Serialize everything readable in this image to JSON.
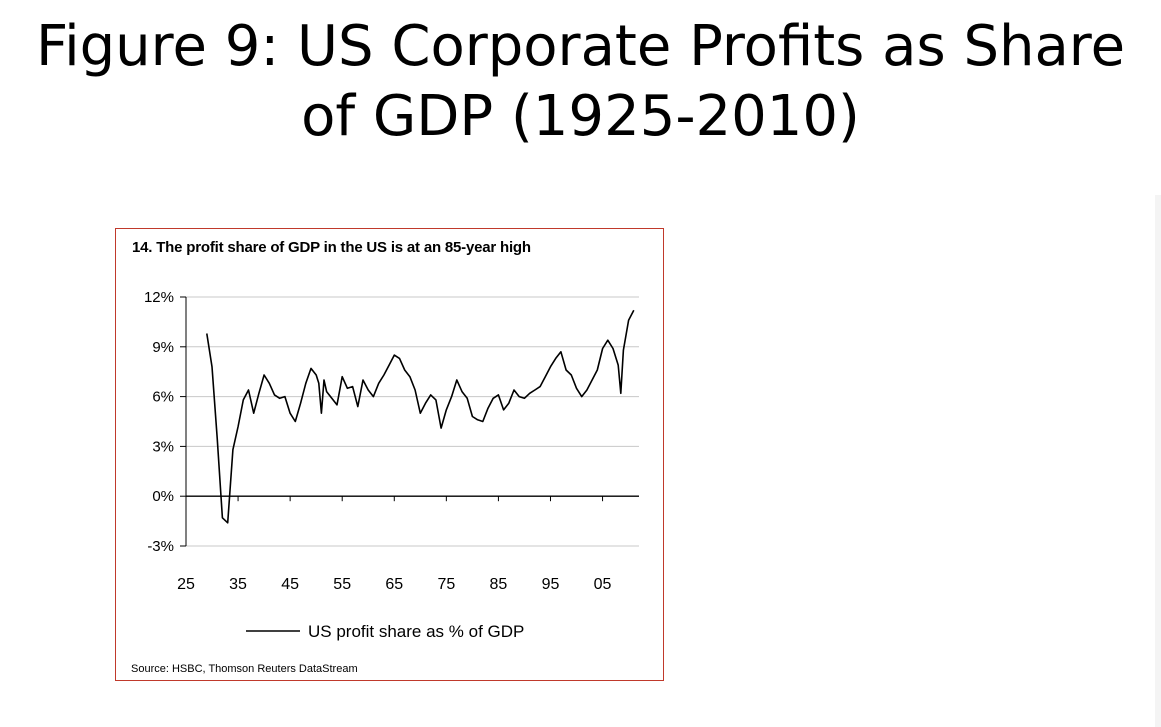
{
  "slide": {
    "title_line1": "Figure 9: US Corporate Profits as Share",
    "title_line2": "of GDP (1925-2010)"
  },
  "chart_data": {
    "type": "line",
    "title": "14. The profit share of GDP in the US is at an 85-year high",
    "source": "Source: HSBC, Thomson Reuters DataStream",
    "ylim": [
      -3,
      12
    ],
    "y_ticks": [
      12,
      9,
      6,
      3,
      0,
      -3
    ],
    "y_tick_labels": [
      "12%",
      "9%",
      "6%",
      "3%",
      "0%",
      "-3%"
    ],
    "xlim": [
      1925,
      2012
    ],
    "x_ticks": [
      1925,
      1935,
      1945,
      1955,
      1965,
      1975,
      1985,
      1995,
      2005
    ],
    "x_tick_labels": [
      "25",
      "35",
      "45",
      "55",
      "65",
      "75",
      "85",
      "95",
      "05"
    ],
    "grid": true,
    "legend_position": "bottom-center",
    "series": [
      {
        "name": "US profit share as % of GDP",
        "color": "#000000",
        "points": [
          [
            1929,
            9.8
          ],
          [
            1930,
            7.8
          ],
          [
            1931,
            3.5
          ],
          [
            1932,
            -1.3
          ],
          [
            1933,
            -1.6
          ],
          [
            1934,
            2.8
          ],
          [
            1935,
            4.2
          ],
          [
            1936,
            5.8
          ],
          [
            1937,
            6.4
          ],
          [
            1938,
            5.0
          ],
          [
            1939,
            6.2
          ],
          [
            1940,
            7.3
          ],
          [
            1941,
            6.8
          ],
          [
            1942,
            6.1
          ],
          [
            1943,
            5.9
          ],
          [
            1944,
            6.0
          ],
          [
            1945,
            5.0
          ],
          [
            1946,
            4.5
          ],
          [
            1947,
            5.6
          ],
          [
            1948,
            6.8
          ],
          [
            1949,
            7.7
          ],
          [
            1950,
            7.3
          ],
          [
            1950.5,
            6.8
          ],
          [
            1951,
            5.0
          ],
          [
            1951.5,
            7.0
          ],
          [
            1952,
            6.3
          ],
          [
            1953,
            5.9
          ],
          [
            1954,
            5.5
          ],
          [
            1955,
            7.2
          ],
          [
            1956,
            6.5
          ],
          [
            1957,
            6.6
          ],
          [
            1958,
            5.4
          ],
          [
            1959,
            7.0
          ],
          [
            1960,
            6.4
          ],
          [
            1961,
            6.0
          ],
          [
            1962,
            6.8
          ],
          [
            1963,
            7.3
          ],
          [
            1964,
            7.9
          ],
          [
            1965,
            8.5
          ],
          [
            1966,
            8.3
          ],
          [
            1967,
            7.6
          ],
          [
            1968,
            7.2
          ],
          [
            1969,
            6.4
          ],
          [
            1970,
            5.0
          ],
          [
            1971,
            5.6
          ],
          [
            1972,
            6.1
          ],
          [
            1973,
            5.8
          ],
          [
            1974,
            4.1
          ],
          [
            1975,
            5.2
          ],
          [
            1976,
            6.0
          ],
          [
            1977,
            7.0
          ],
          [
            1978,
            6.3
          ],
          [
            1979,
            5.9
          ],
          [
            1980,
            4.8
          ],
          [
            1981,
            4.6
          ],
          [
            1982,
            4.5
          ],
          [
            1983,
            5.3
          ],
          [
            1984,
            5.9
          ],
          [
            1985,
            6.1
          ],
          [
            1986,
            5.2
          ],
          [
            1987,
            5.6
          ],
          [
            1988,
            6.4
          ],
          [
            1989,
            6.0
          ],
          [
            1990,
            5.9
          ],
          [
            1991,
            6.2
          ],
          [
            1992,
            6.4
          ],
          [
            1993,
            6.6
          ],
          [
            1994,
            7.2
          ],
          [
            1995,
            7.8
          ],
          [
            1996,
            8.3
          ],
          [
            1997,
            8.7
          ],
          [
            1998,
            7.6
          ],
          [
            1999,
            7.3
          ],
          [
            2000,
            6.5
          ],
          [
            2001,
            6.0
          ],
          [
            2002,
            6.4
          ],
          [
            2003,
            7.0
          ],
          [
            2004,
            7.6
          ],
          [
            2005,
            8.9
          ],
          [
            2006,
            9.4
          ],
          [
            2007,
            8.9
          ],
          [
            2008,
            7.9
          ],
          [
            2008.5,
            6.2
          ],
          [
            2009,
            8.8
          ],
          [
            2010,
            10.6
          ],
          [
            2011,
            11.2
          ]
        ]
      }
    ]
  }
}
